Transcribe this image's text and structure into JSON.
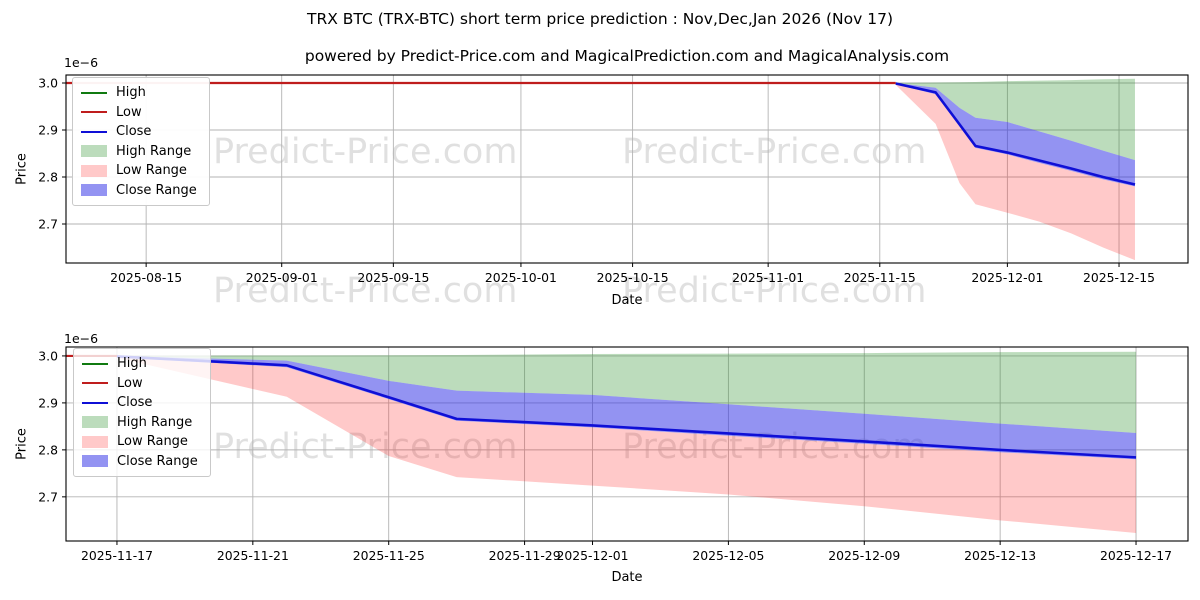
{
  "title": "TRX BTC (TRX-BTC) short term price prediction : Nov,Dec,Jan 2026 (Nov 17)",
  "subtitle": "powered by Predict-Price.com and MagicalPrediction.com and MagicalAnalysis.com",
  "watermark": {
    "text": "Predict-Price.com"
  },
  "colors": {
    "high_line": "#107a10",
    "low_line": "#bf1d1d",
    "close_line": "#0f0fd6",
    "high_fill": "rgba(34,139,34,0.30)",
    "low_fill": "rgba(255,30,30,0.24)",
    "close_fill": "rgba(40,40,230,0.50)",
    "grid": "#b3b3b3",
    "spine": "#000000",
    "tick_text": "#000000"
  },
  "legend": {
    "items": [
      {
        "label": "High",
        "swatch": "line",
        "color_key": "high_line"
      },
      {
        "label": "Low",
        "swatch": "line",
        "color_key": "low_line"
      },
      {
        "label": "Close",
        "swatch": "line",
        "color_key": "close_line"
      },
      {
        "label": "High Range",
        "swatch": "fill",
        "color_key": "high_fill"
      },
      {
        "label": "Low Range",
        "swatch": "fill",
        "color_key": "low_fill"
      },
      {
        "label": "Close Range",
        "swatch": "fill",
        "color_key": "close_fill"
      }
    ]
  },
  "chart_data": [
    {
      "type": "area",
      "name": "price-history-and-prediction",
      "xlabel": "Date",
      "ylabel": "Price",
      "offset_text": "1e−6",
      "units": "1e-6 BTC",
      "grid": true,
      "xlim_days": [
        -10.05,
        130.65
      ],
      "ylim": [
        2.617,
        3.017
      ],
      "yticks": [
        {
          "v": 3.0,
          "label": "3.0"
        },
        {
          "v": 2.9,
          "label": "2.9"
        },
        {
          "v": 2.8,
          "label": "2.8"
        },
        {
          "v": 2.7,
          "label": "2.7"
        }
      ],
      "xticks": [
        {
          "d": 0,
          "label": "2025-08-15"
        },
        {
          "d": 17,
          "label": "2025-09-01"
        },
        {
          "d": 31,
          "label": "2025-09-15"
        },
        {
          "d": 47,
          "label": "2025-10-01"
        },
        {
          "d": 61,
          "label": "2025-10-15"
        },
        {
          "d": 78,
          "label": "2025-11-01"
        },
        {
          "d": 92,
          "label": "2025-11-15"
        },
        {
          "d": 108,
          "label": "2025-12-01"
        },
        {
          "d": 122,
          "label": "2025-12-15"
        }
      ],
      "history": {
        "d": [
          -10.05,
          94
        ],
        "value": 3.0,
        "series_drawn": "Low"
      },
      "prediction": {
        "dates": [
          "2025-11-17",
          "2025-11-22",
          "2025-11-25",
          "2025-11-27",
          "2025-12-01",
          "2025-12-05",
          "2025-12-09",
          "2025-12-13",
          "2025-12-17"
        ],
        "d": [
          94,
          99,
          102,
          104,
          108,
          112,
          116,
          120,
          124
        ],
        "high_top": [
          3.0,
          3.001,
          3.0015,
          3.002,
          3.004,
          3.005,
          3.006,
          3.008,
          3.009
        ],
        "close_high": [
          3.0,
          2.99,
          2.947,
          2.926,
          2.917,
          2.897,
          2.877,
          2.856,
          2.836
        ],
        "close": [
          2.999,
          2.98,
          2.912,
          2.866,
          2.852,
          2.835,
          2.818,
          2.8,
          2.784
        ],
        "close_low": [
          2.997,
          2.976,
          2.908,
          2.862,
          2.848,
          2.83,
          2.813,
          2.795,
          2.78
        ],
        "low_bottom": [
          2.996,
          2.913,
          2.787,
          2.742,
          2.724,
          2.705,
          2.68,
          2.65,
          2.623
        ]
      }
    },
    {
      "type": "area",
      "name": "prediction-zoom",
      "xlabel": "Date",
      "ylabel": "Price",
      "offset_text": "1e−6",
      "units": "1e-6 BTC",
      "grid": true,
      "xlim_days": [
        -1.5,
        31.53
      ],
      "ylim": [
        2.606,
        3.019
      ],
      "yticks": [
        {
          "v": 3.0,
          "label": "3.0"
        },
        {
          "v": 2.9,
          "label": "2.9"
        },
        {
          "v": 2.8,
          "label": "2.8"
        },
        {
          "v": 2.7,
          "label": "2.7"
        }
      ],
      "xticks": [
        {
          "d": 0,
          "label": "2025-11-17"
        },
        {
          "d": 4,
          "label": "2025-11-21"
        },
        {
          "d": 8,
          "label": "2025-11-25"
        },
        {
          "d": 12,
          "label": "2025-11-29"
        },
        {
          "d": 14,
          "label": "2025-12-01"
        },
        {
          "d": 18,
          "label": "2025-12-05"
        },
        {
          "d": 22,
          "label": "2025-12-09"
        },
        {
          "d": 26,
          "label": "2025-12-13"
        },
        {
          "d": 30,
          "label": "2025-12-17"
        }
      ],
      "history": {
        "d": [
          -1.5,
          0
        ],
        "value": 3.0,
        "series_drawn": "Low"
      },
      "prediction": {
        "dates": [
          "2025-11-17",
          "2025-11-22",
          "2025-11-25",
          "2025-11-27",
          "2025-12-01",
          "2025-12-05",
          "2025-12-09",
          "2025-12-13",
          "2025-12-17"
        ],
        "d": [
          0,
          5,
          8,
          10,
          14,
          18,
          22,
          26,
          30
        ],
        "high_top": [
          3.0,
          3.001,
          3.0015,
          3.002,
          3.004,
          3.005,
          3.006,
          3.008,
          3.009
        ],
        "close_high": [
          3.0,
          2.99,
          2.947,
          2.926,
          2.917,
          2.897,
          2.877,
          2.856,
          2.836
        ],
        "close": [
          2.999,
          2.98,
          2.912,
          2.866,
          2.852,
          2.835,
          2.818,
          2.8,
          2.784
        ],
        "close_low": [
          2.997,
          2.976,
          2.908,
          2.862,
          2.848,
          2.83,
          2.813,
          2.795,
          2.78
        ],
        "low_bottom": [
          2.996,
          2.913,
          2.787,
          2.742,
          2.724,
          2.705,
          2.68,
          2.65,
          2.623
        ]
      }
    }
  ]
}
